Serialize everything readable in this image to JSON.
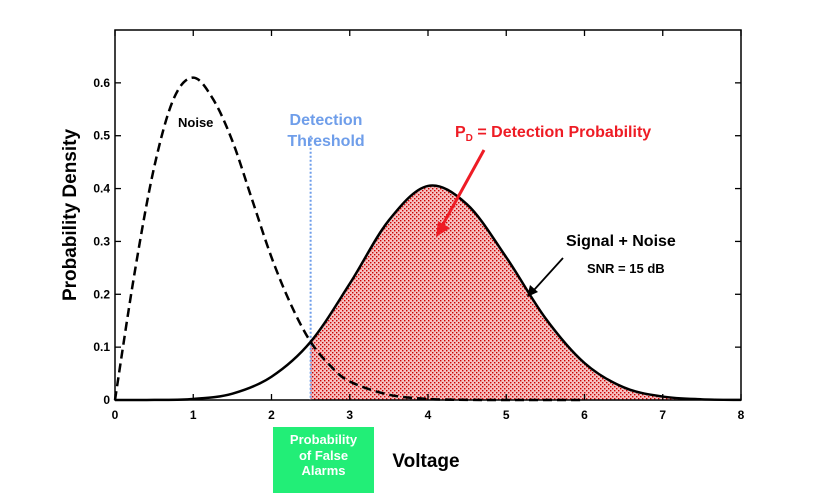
{
  "chart_data": {
    "type": "line",
    "title": "",
    "xlabel": "Voltage",
    "ylabel": "Probability Density",
    "xlim": [
      0,
      8
    ],
    "ylim": [
      0,
      0.7
    ],
    "xticks": [
      "0",
      "1",
      "2",
      "3",
      "4",
      "5",
      "6",
      "7",
      "8"
    ],
    "yticks": [
      "0",
      "0.1",
      "0.2",
      "0.3",
      "0.4",
      "0.5",
      "0.6"
    ],
    "threshold": 2.5,
    "series": [
      {
        "name": "Noise",
        "style": "dashed",
        "color": "#000000",
        "x": [
          0,
          0.25,
          0.5,
          0.75,
          1.0,
          1.25,
          1.5,
          1.75,
          2.0,
          2.25,
          2.5,
          2.75,
          3.0,
          3.5,
          4.0,
          4.5,
          5.0,
          5.5,
          6.0
        ],
        "y": [
          0,
          0.24,
          0.44,
          0.57,
          0.61,
          0.57,
          0.49,
          0.38,
          0.27,
          0.18,
          0.11,
          0.065,
          0.035,
          0.01,
          0.002,
          0.0003,
          0,
          0,
          0
        ]
      },
      {
        "name": "Signal + Noise",
        "style": "solid",
        "color": "#000000",
        "x": [
          0,
          0.5,
          1.0,
          1.5,
          2.0,
          2.5,
          3.0,
          3.5,
          4.0,
          4.5,
          5.0,
          5.5,
          6.0,
          6.5,
          7.0,
          7.5,
          8.0
        ],
        "y": [
          0,
          0.0002,
          0.002,
          0.012,
          0.044,
          0.11,
          0.22,
          0.34,
          0.405,
          0.37,
          0.27,
          0.155,
          0.07,
          0.024,
          0.0065,
          0.0013,
          0.0002
        ]
      }
    ],
    "annotations": {
      "noise_label": "Noise",
      "threshold_line1": "Detection",
      "threshold_line2": "Threshold",
      "pd_p": "P",
      "pd_sub": "D",
      "pd_rest": " = Detection Probability",
      "signal_label": "Signal + Noise",
      "snr_label": "SNR = 15 dB",
      "pfa_line1": "Probability",
      "pfa_line2": "of False",
      "pfa_line3": "Alarms"
    },
    "colors": {
      "threshold": "#6f9eea",
      "pd_text": "#ee1c25",
      "pd_fill": "#dd1111",
      "pfa_box": "#22ee77"
    }
  }
}
